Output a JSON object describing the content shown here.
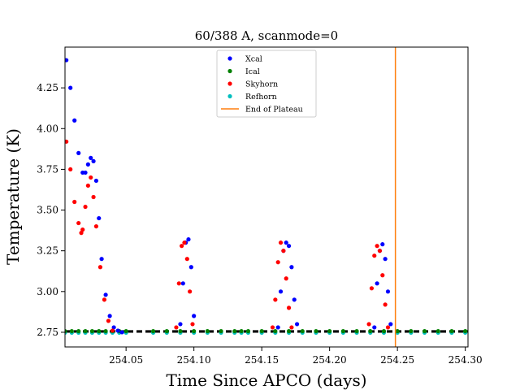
{
  "chart_data": {
    "type": "scatter",
    "title": "60/388 A, scanmode=0",
    "xlabel": "Time Since APCO (days)",
    "ylabel": "Temperature (K)",
    "xlim": [
      254.005,
      254.302
    ],
    "ylim": [
      2.66,
      4.5
    ],
    "xticks": [
      "254.05",
      "254.10",
      "254.15",
      "254.20",
      "254.25",
      "254.30"
    ],
    "yticks": [
      "2.75",
      "3.00",
      "3.25",
      "3.50",
      "3.75",
      "4.00",
      "4.25"
    ],
    "grid": false,
    "legend_position": "top-center",
    "legend": [
      "Xcal",
      "Ical",
      "Skyhorn",
      "Refhorn",
      "End of Plateau"
    ],
    "colors": {
      "Xcal": "#0000ff",
      "Ical": "#008000",
      "Skyhorn": "#ff0000",
      "Refhorn": "#00bfbf",
      "End of Plateau": "#ff7f0e",
      "dashed": "#000000"
    },
    "end_of_plateau_x": 254.2485,
    "dashed_lines_y": [
      2.752,
      2.758
    ],
    "series": [
      {
        "name": "Xcal",
        "color": "#0000ff",
        "x": [
          254.006,
          254.009,
          254.012,
          254.015,
          254.018,
          254.02,
          254.022,
          254.024,
          254.026,
          254.028,
          254.03,
          254.032,
          254.035,
          254.038,
          254.041,
          254.044,
          254.047,
          254.09,
          254.092,
          254.094,
          254.096,
          254.098,
          254.1,
          254.162,
          254.164,
          254.166,
          254.168,
          254.17,
          254.172,
          254.174,
          254.176,
          254.233,
          254.235,
          254.237,
          254.239,
          254.241,
          254.243,
          254.245
        ],
        "y": [
          4.42,
          4.25,
          4.05,
          3.85,
          3.73,
          3.73,
          3.78,
          3.82,
          3.8,
          3.68,
          3.45,
          3.2,
          2.98,
          2.85,
          2.78,
          2.76,
          2.75,
          2.8,
          3.05,
          3.3,
          3.32,
          3.15,
          2.85,
          2.78,
          3.0,
          3.25,
          3.3,
          3.28,
          3.15,
          2.95,
          2.8,
          2.78,
          3.05,
          3.25,
          3.29,
          3.2,
          3.0,
          2.8
        ]
      },
      {
        "name": "Skyhorn",
        "color": "#ff0000",
        "x": [
          254.006,
          254.009,
          254.012,
          254.015,
          254.017,
          254.018,
          254.02,
          254.022,
          254.024,
          254.026,
          254.028,
          254.031,
          254.034,
          254.037,
          254.04,
          254.087,
          254.089,
          254.091,
          254.093,
          254.095,
          254.097,
          254.099,
          254.158,
          254.16,
          254.162,
          254.164,
          254.166,
          254.168,
          254.17,
          254.172,
          254.229,
          254.231,
          254.233,
          254.235,
          254.237,
          254.239,
          254.241,
          254.243
        ],
        "y": [
          3.92,
          3.75,
          3.55,
          3.42,
          3.36,
          3.38,
          3.52,
          3.65,
          3.7,
          3.58,
          3.4,
          3.15,
          2.95,
          2.82,
          2.76,
          2.78,
          3.05,
          3.28,
          3.3,
          3.2,
          3.0,
          2.8,
          2.78,
          2.95,
          3.18,
          3.3,
          3.25,
          3.08,
          2.9,
          2.78,
          2.8,
          3.02,
          3.22,
          3.28,
          3.25,
          3.1,
          2.92,
          2.78
        ]
      },
      {
        "name": "Ical",
        "color": "#008000",
        "x": [
          254.005,
          254.01,
          254.015,
          254.02,
          254.025,
          254.03,
          254.035,
          254.04,
          254.045,
          254.05,
          254.07,
          254.08,
          254.09,
          254.1,
          254.11,
          254.12,
          254.13,
          254.135,
          254.14,
          254.15,
          254.16,
          254.17,
          254.18,
          254.19,
          254.2,
          254.21,
          254.22,
          254.23,
          254.24,
          254.25,
          254.26,
          254.27,
          254.28,
          254.29,
          254.3
        ],
        "y": [
          2.757,
          2.757,
          2.757,
          2.757,
          2.757,
          2.757,
          2.757,
          2.757,
          2.757,
          2.757,
          2.757,
          2.757,
          2.757,
          2.757,
          2.757,
          2.757,
          2.757,
          2.757,
          2.757,
          2.757,
          2.757,
          2.757,
          2.757,
          2.757,
          2.757,
          2.757,
          2.757,
          2.757,
          2.757,
          2.757,
          2.757,
          2.757,
          2.757,
          2.757,
          2.757
        ]
      },
      {
        "name": "Refhorn",
        "color": "#00bfbf",
        "x": [
          254.005,
          254.01,
          254.015,
          254.02,
          254.025,
          254.03,
          254.035,
          254.04,
          254.045,
          254.05,
          254.07,
          254.08,
          254.09,
          254.1,
          254.11,
          254.12,
          254.13,
          254.135,
          254.14,
          254.15,
          254.16,
          254.17,
          254.18,
          254.19,
          254.2,
          254.21,
          254.22,
          254.23,
          254.24,
          254.25,
          254.26,
          254.27,
          254.28,
          254.29,
          254.3
        ],
        "y": [
          2.748,
          2.748,
          2.748,
          2.748,
          2.748,
          2.748,
          2.748,
          2.748,
          2.748,
          2.748,
          2.748,
          2.748,
          2.748,
          2.748,
          2.748,
          2.748,
          2.748,
          2.748,
          2.748,
          2.748,
          2.748,
          2.748,
          2.748,
          2.748,
          2.748,
          2.748,
          2.748,
          2.748,
          2.748,
          2.748,
          2.748,
          2.748,
          2.748,
          2.748,
          2.748
        ]
      }
    ]
  }
}
